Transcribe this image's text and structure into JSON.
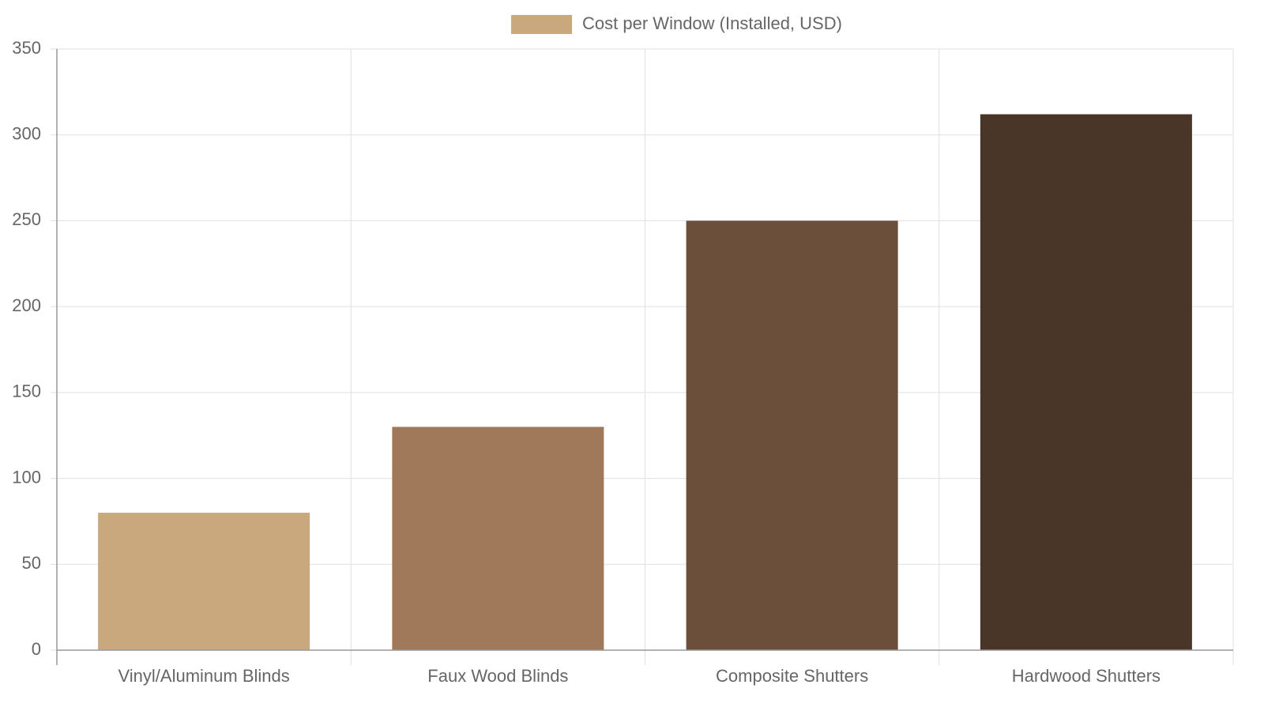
{
  "chart_data": {
    "type": "bar",
    "categories": [
      "Vinyl/Aluminum Blinds",
      "Faux Wood Blinds",
      "Composite Shutters",
      "Hardwood Shutters"
    ],
    "series": [
      {
        "name": "Cost per Window (Installed, USD)",
        "colors": [
          "#c8a87c",
          "#a0785a",
          "#6b4f3a",
          "#4a3628"
        ],
        "values": [
          80,
          130,
          250,
          312
        ]
      }
    ],
    "ylim": [
      0,
      350
    ],
    "yticks": [
      0,
      50,
      100,
      150,
      200,
      250,
      300,
      350
    ],
    "grid": true,
    "legend": "top"
  }
}
